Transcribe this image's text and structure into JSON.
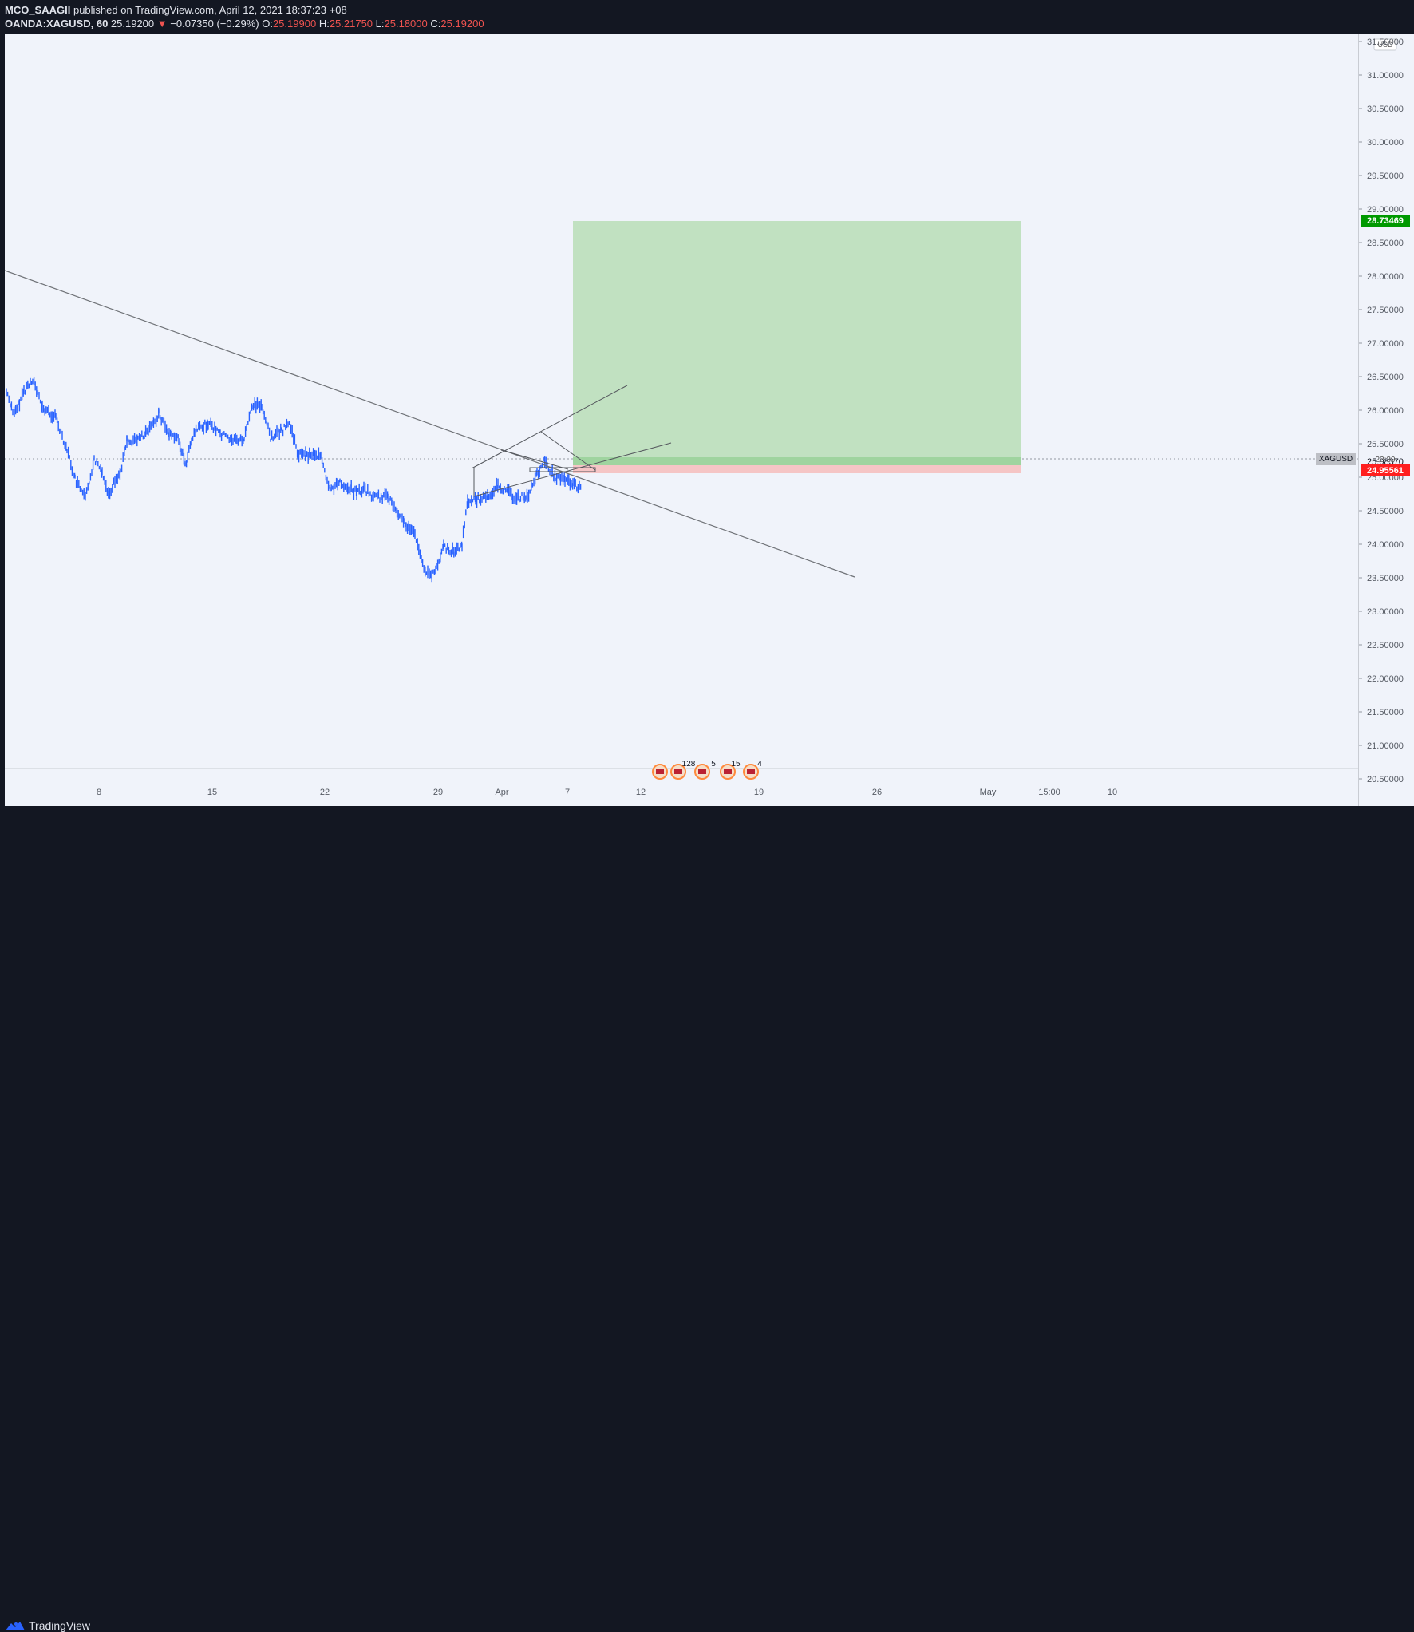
{
  "header": {
    "author": "MCO_SAAGII",
    "published": "published on TradingView.com, April 12, 2021 18:37:23 +08",
    "symbol": "OANDA:XAGUSD, 60",
    "last": "25.19200",
    "change": "−0.07350 (−0.29%)",
    "o_label": "O:",
    "o_value": "25.19900",
    "h_label": "H:",
    "h_value": "25.21750",
    "l_label": "L:",
    "l_value": "25.18000",
    "c_label": "C:",
    "c_value": "25.19200"
  },
  "price_axis": {
    "currency": "USD",
    "ticks": [
      "31.50000",
      "31.00000",
      "30.50000",
      "30.00000",
      "29.50000",
      "29.00000",
      "28.50000",
      "28.00000",
      "27.50000",
      "27.00000",
      "26.50000",
      "26.00000",
      "25.50000",
      "25.00000",
      "24.50000",
      "24.00000",
      "23.50000",
      "23.00000",
      "22.50000",
      "22.00000",
      "21.50000",
      "21.00000",
      "20.50000"
    ],
    "target_label": "28.73469",
    "stop_label": "24.95561",
    "current_price": "25.08370",
    "symbol_tag": "XAGUSD",
    "countdown": "22:39"
  },
  "time_axis": {
    "ticks": [
      "8",
      "15",
      "22",
      "29",
      "Apr",
      "7",
      "12",
      "19",
      "26",
      "May",
      "15:00",
      "10"
    ]
  },
  "events": [
    "128",
    "5",
    "15",
    "4"
  ],
  "footer": {
    "brand": "TradingView"
  },
  "colors": {
    "background": "#131722",
    "chart_bg": "#f0f3fa",
    "candle": "#2962ff",
    "target_zone": "#a5d6a7",
    "stop_zone": "#ef9a9a",
    "target_tag": "#009900",
    "stop_tag": "#ee0000"
  }
}
